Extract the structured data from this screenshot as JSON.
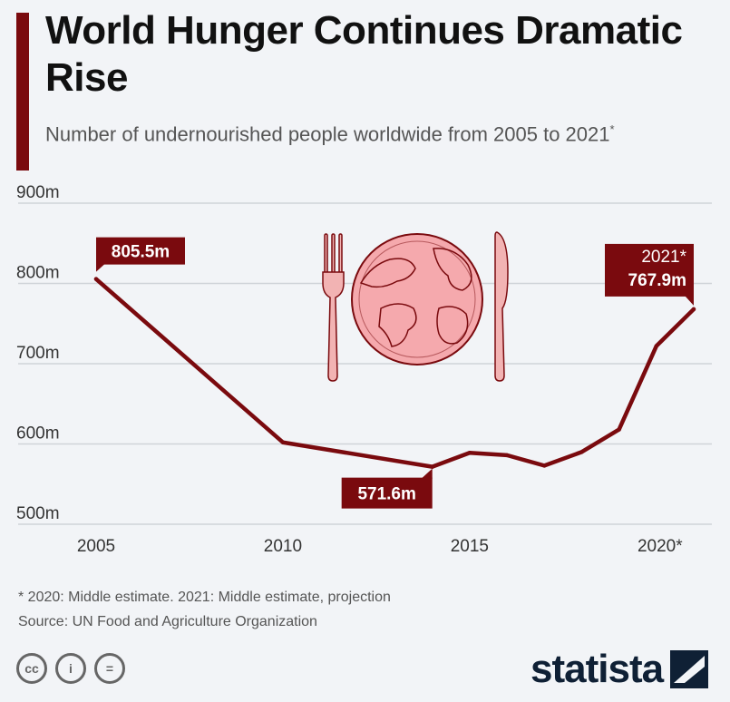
{
  "header": {
    "title": "World Hunger Continues Dramatic Rise",
    "subtitle_main": "Number of undernourished people worldwide from 2005 to 2021",
    "subtitle_mark": "*"
  },
  "chart_data": {
    "type": "line",
    "x": [
      2005,
      2010,
      2014,
      2015,
      2016,
      2017,
      2018,
      2019,
      2020,
      2021
    ],
    "series": [
      {
        "values": [
          805.5,
          602,
          571.6,
          589,
          586,
          573,
          590,
          618,
          722,
          767.9
        ]
      }
    ],
    "x_ticks": [
      "2005",
      "2010",
      "2015",
      "2020*"
    ],
    "x_tick_values": [
      2005,
      2010,
      2015,
      2020
    ],
    "y_ticks": [
      "500m",
      "600m",
      "700m",
      "800m",
      "900m"
    ],
    "y_tick_values": [
      500,
      600,
      700,
      800,
      900
    ],
    "ylim": [
      500,
      900
    ],
    "xlim": [
      2005,
      2021
    ],
    "grid": true,
    "annotations": [
      {
        "x": 2005,
        "y": 805.5,
        "label": "805.5m"
      },
      {
        "x": 2014,
        "y": 571.6,
        "label": "571.6m"
      },
      {
        "x": 2021,
        "y": 767.9,
        "label": "2021*",
        "label2": "767.9m"
      }
    ],
    "line_color": "#7a0a0e"
  },
  "footer": {
    "note": "* 2020: Middle estimate. 2021: Middle estimate, projection",
    "source": "Source: UN Food and Agriculture Organization",
    "brand": "statista",
    "license_icons": [
      "cc-icon",
      "by-icon",
      "nd-icon"
    ],
    "license_glyphs": [
      "cc",
      "i",
      "="
    ]
  }
}
